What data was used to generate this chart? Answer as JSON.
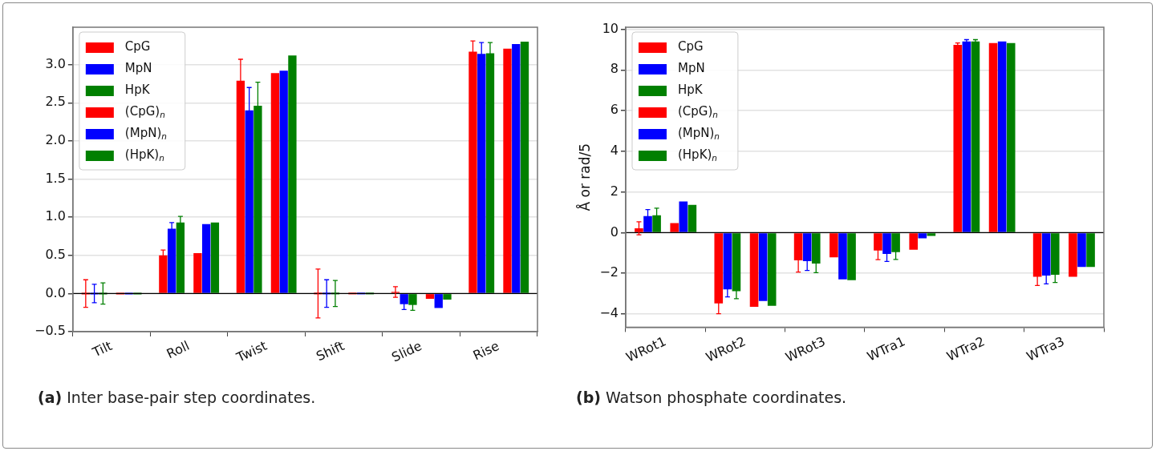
{
  "chart_data": [
    {
      "type": "bar",
      "categories": [
        "Tilt",
        "Roll",
        "Twist",
        "Shift",
        "Slide",
        "Rise"
      ],
      "series": [
        {
          "name": "CpG",
          "color": "#ff0000",
          "values": [
            0,
            0.5,
            2.79,
            0,
            0.02,
            3.17
          ],
          "errors": [
            0.18,
            0.07,
            0.28,
            0.32,
            0.07,
            0.14
          ]
        },
        {
          "name": "MpN",
          "color": "#0000ff",
          "values": [
            0,
            0.85,
            2.4,
            0,
            -0.14,
            3.14
          ],
          "errors": [
            0.12,
            0.08,
            0.3,
            0.18,
            0.07,
            0.15
          ]
        },
        {
          "name": "HpK",
          "color": "#008000",
          "values": [
            0,
            0.93,
            2.46,
            0,
            -0.15,
            3.15
          ],
          "errors": [
            0.14,
            0.08,
            0.31,
            0.17,
            0.07,
            0.14
          ]
        },
        {
          "name": "(CpG)$_{n}$",
          "color": "#ff0000",
          "values": [
            0,
            0.53,
            2.89,
            0,
            -0.07,
            3.21
          ]
        },
        {
          "name": "(MpN)$_{n}$",
          "color": "#0000ff",
          "values": [
            0,
            0.91,
            2.92,
            0,
            -0.19,
            3.27
          ]
        },
        {
          "name": "(HpK)$_{n}$",
          "color": "#008000",
          "values": [
            0,
            0.93,
            3.12,
            0,
            -0.08,
            3.3
          ]
        }
      ],
      "ylim": [
        -0.5,
        3.49
      ],
      "yticks": [
        {
          "value": -0.5,
          "label": "−0.5"
        },
        {
          "value": 0,
          "label": "0.0"
        },
        {
          "value": 0.5,
          "label": "0.5"
        },
        {
          "value": 1,
          "label": "1.0"
        },
        {
          "value": 1.5,
          "label": "1.5"
        },
        {
          "value": 2,
          "label": "2.0"
        },
        {
          "value": 2.5,
          "label": "2.5"
        },
        {
          "value": 3,
          "label": "3.0"
        }
      ],
      "grid": "y",
      "legend": "top left",
      "ref_lines": [
        {
          "axis": "y",
          "value": 0,
          "color": "#000000"
        }
      ],
      "annotations": [
        "(a) Inter base-pair step coordinates."
      ]
    },
    {
      "type": "bar",
      "categories": [
        "WRot1",
        "WRot2",
        "WRot3",
        "WTra1",
        "WTra2",
        "WTra3"
      ],
      "series": [
        {
          "name": "CpG",
          "color": "#ff0000",
          "values": [
            0.21,
            -3.48,
            -1.36,
            -0.88,
            9.23,
            -2.17
          ],
          "errors": [
            0.32,
            0.51,
            0.58,
            0.45,
            0.1,
            0.43
          ]
        },
        {
          "name": "MpN",
          "color": "#0000ff",
          "values": [
            0.81,
            -2.79,
            -1.4,
            -1.05,
            9.4,
            -2.11
          ],
          "errors": [
            0.32,
            0.37,
            0.46,
            0.37,
            0.09,
            0.41
          ]
        },
        {
          "name": "HpK",
          "color": "#008000",
          "values": [
            0.85,
            -2.88,
            -1.52,
            -0.96,
            9.4,
            -2.07
          ],
          "errors": [
            0.35,
            0.37,
            0.45,
            0.36,
            0.09,
            0.38
          ]
        },
        {
          "name": "(CpG)$_{n}$",
          "color": "#ff0000",
          "values": [
            0.47,
            -3.65,
            -1.22,
            -0.84,
            9.32,
            -2.17
          ]
        },
        {
          "name": "(MpN)$_{n}$",
          "color": "#0000ff",
          "values": [
            1.53,
            -3.36,
            -2.3,
            -0.28,
            9.4,
            -1.69
          ]
        },
        {
          "name": "(HpK)$_{n}$",
          "color": "#008000",
          "values": [
            1.36,
            -3.6,
            -2.34,
            -0.16,
            9.32,
            -1.69
          ]
        }
      ],
      "ylabel": "Å or rad/5",
      "ylim": [
        -4.65,
        10.1
      ],
      "yticks": [
        {
          "value": -4,
          "label": "−4"
        },
        {
          "value": -2,
          "label": "−2"
        },
        0,
        2,
        4,
        6,
        8,
        10
      ],
      "grid": "y",
      "legend": "top left",
      "ref_lines": [
        {
          "axis": "y",
          "value": 0,
          "color": "#000000"
        }
      ],
      "annotations": [
        "(b) Watson phosphate coordinates."
      ]
    }
  ]
}
